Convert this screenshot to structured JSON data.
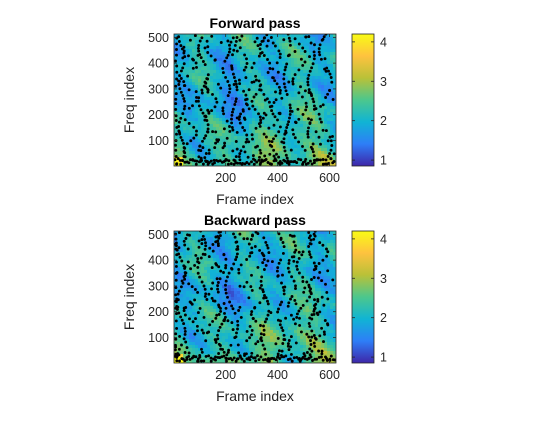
{
  "chart_data": [
    {
      "type": "heatmap",
      "title": "Forward pass",
      "xlabel": "Frame index",
      "ylabel": "Freq index",
      "xlim": [
        1,
        625
      ],
      "ylim": [
        1,
        513
      ],
      "x_ticks": [
        200,
        400,
        600
      ],
      "y_ticks": [
        100,
        200,
        300,
        400,
        500
      ],
      "colorbar": {
        "range": [
          0.85,
          4.2
        ],
        "ticks": [
          1,
          2,
          3,
          4
        ]
      },
      "overlay": "black dots marking selected time-frequency points",
      "grid": false
    },
    {
      "type": "heatmap",
      "title": "Backward pass",
      "xlabel": "Frame index",
      "ylabel": "Freq index",
      "xlim": [
        1,
        625
      ],
      "ylim": [
        1,
        513
      ],
      "x_ticks": [
        200,
        400,
        600
      ],
      "y_ticks": [
        100,
        200,
        300,
        400,
        500
      ],
      "colorbar": {
        "range": [
          0.85,
          4.2
        ],
        "ticks": [
          1,
          2,
          3,
          4
        ]
      },
      "overlay": "black dots marking selected time-frequency points",
      "grid": false
    }
  ],
  "colors": {
    "colormap": [
      "#3e26a8",
      "#2e7ef7",
      "#10b4d4",
      "#4cc78d",
      "#b9c138",
      "#fec23f",
      "#f9fb15"
    ],
    "axis": "#262626",
    "dots": "#000000"
  }
}
